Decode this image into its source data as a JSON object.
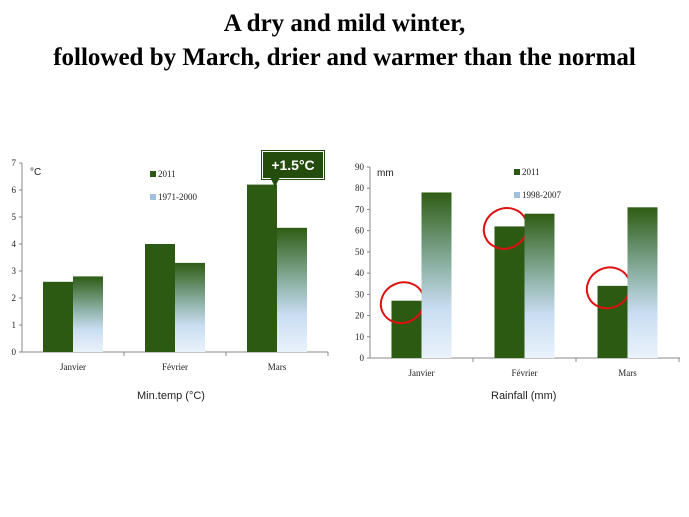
{
  "slide": {
    "title_line1": "A dry and mild winter,",
    "title_line2": "followed by March, drier and warmer than the normal",
    "callout": "+1.5°C"
  },
  "colors": {
    "series_dark": "#2d5a12",
    "series_light_top": "#2f5c14",
    "series_light_bottom": "#d7e7f7",
    "axis": "#888888",
    "annotation_ellipse": "#e01010"
  },
  "chart_data": [
    {
      "type": "bar",
      "unit_label": "°C",
      "caption": "Min.temp (°C)",
      "categories": [
        "Janvier",
        "Février",
        "Mars"
      ],
      "series": [
        {
          "name": "2011",
          "values": [
            2.6,
            4.0,
            6.2
          ]
        },
        {
          "name": "1971-2000",
          "values": [
            2.8,
            3.3,
            4.6
          ]
        }
      ],
      "ylim": [
        0,
        7
      ],
      "yticks": [
        "0",
        "1",
        "2",
        "3",
        "4",
        "5",
        "6",
        "7"
      ],
      "legend_placement": "top-left",
      "grid": false
    },
    {
      "type": "bar",
      "unit_label": "mm",
      "caption": "Rainfall (mm)",
      "categories": [
        "Janvier",
        "Février",
        "Mars"
      ],
      "series": [
        {
          "name": "2011",
          "values": [
            27,
            62,
            34
          ]
        },
        {
          "name": "1998-2007",
          "values": [
            78,
            68,
            71
          ]
        }
      ],
      "ylim": [
        0,
        90
      ],
      "yticks": [
        "0",
        "10",
        "20",
        "30",
        "40",
        "50",
        "60",
        "70",
        "80",
        "90"
      ],
      "legend_placement": "top-left",
      "grid": false,
      "highlighted_series": "2011"
    }
  ]
}
